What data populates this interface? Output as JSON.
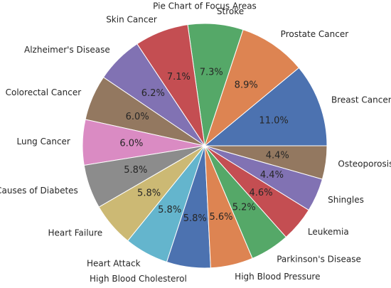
{
  "chart_data": {
    "type": "pie",
    "title": "Pie Chart of Focus Areas",
    "categories": [
      "Breast Cancer",
      "Prostate Cancer",
      "Stroke",
      "Skin Cancer",
      "Alzheimer's Disease",
      "Colorectal Cancer",
      "Lung Cancer",
      "Causes of Diabetes",
      "Heart Failure",
      "Heart Attack",
      "High Blood Cholesterol",
      "High Blood Pressure",
      "Parkinson's Disease",
      "Leukemia",
      "Shingles",
      "Osteoporosis"
    ],
    "values": [
      11.0,
      8.9,
      7.3,
      7.1,
      6.2,
      6.0,
      6.0,
      5.8,
      5.8,
      5.8,
      5.8,
      5.6,
      5.2,
      4.6,
      4.4,
      4.4
    ],
    "value_labels": [
      "11.0%",
      "8.9%",
      "7.3%",
      "7.1%",
      "6.2%",
      "6.0%",
      "6.0%",
      "5.8%",
      "5.8%",
      "5.8%",
      "5.8%",
      "5.6%",
      "5.2%",
      "4.6%",
      "4.4%",
      "4.4%"
    ],
    "colors": [
      "#4c72b0",
      "#dd8452",
      "#55a868",
      "#c44e52",
      "#8172b3",
      "#937860",
      "#da8bc3",
      "#8c8c8c",
      "#ccb974",
      "#64b5cd",
      "#4c72b0",
      "#dd8452",
      "#55a868",
      "#c44e52",
      "#8172b3",
      "#937860"
    ]
  }
}
